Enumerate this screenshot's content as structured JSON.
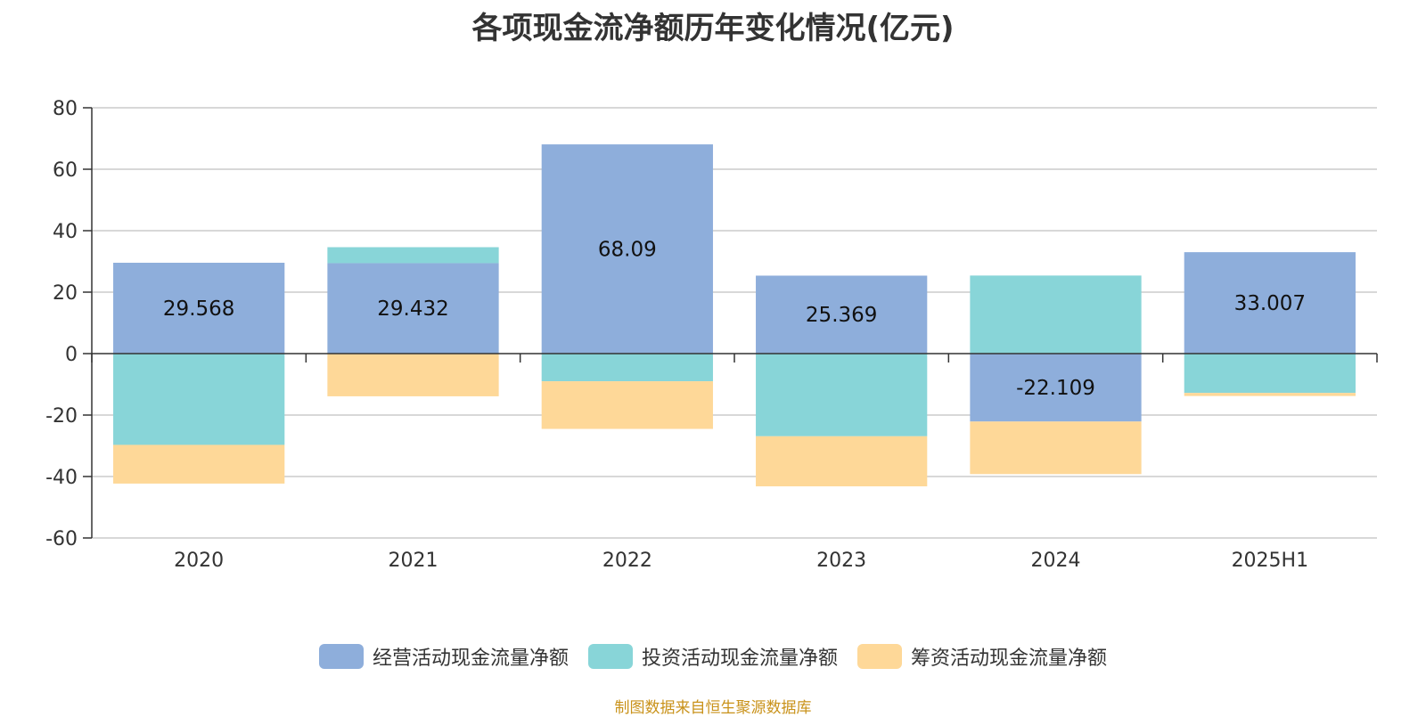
{
  "title": "各项现金流净额历年变化情况(亿元)",
  "source": "制图数据来自恒生聚源数据库",
  "colors": {
    "operating": "#8eaedb",
    "investing": "#88d5d8",
    "financing": "#fed898",
    "grid": "#cccccc",
    "axis": "#333333",
    "text": "#333333"
  },
  "chart_data": {
    "type": "bar",
    "stacked": true,
    "title": "各项现金流净额历年变化情况(亿元)",
    "categories": [
      "2020",
      "2021",
      "2022",
      "2023",
      "2024",
      "2025H1"
    ],
    "ylim": [
      -60,
      80
    ],
    "yticks": [
      80,
      60,
      40,
      20,
      0,
      -20,
      -40,
      -60
    ],
    "grid": true,
    "legend_position": "bottom",
    "series": [
      {
        "name": "经营活动现金流量净额",
        "color": "#8eaedb",
        "values": [
          29.568,
          29.432,
          68.09,
          25.369,
          -22.109,
          33.007
        ],
        "labels": [
          "29.568",
          "29.432",
          "68.09",
          "25.369",
          "-22.109",
          "33.007"
        ]
      },
      {
        "name": "投资活动现金流量净额",
        "color": "#88d5d8",
        "values": [
          -29.7,
          5.2,
          -9.0,
          -26.9,
          25.4,
          -12.8
        ]
      },
      {
        "name": "筹资活动现金流量净额",
        "color": "#fed898",
        "values": [
          -12.6,
          -13.9,
          -15.5,
          -16.3,
          -17.1,
          -1.0
        ]
      }
    ]
  }
}
